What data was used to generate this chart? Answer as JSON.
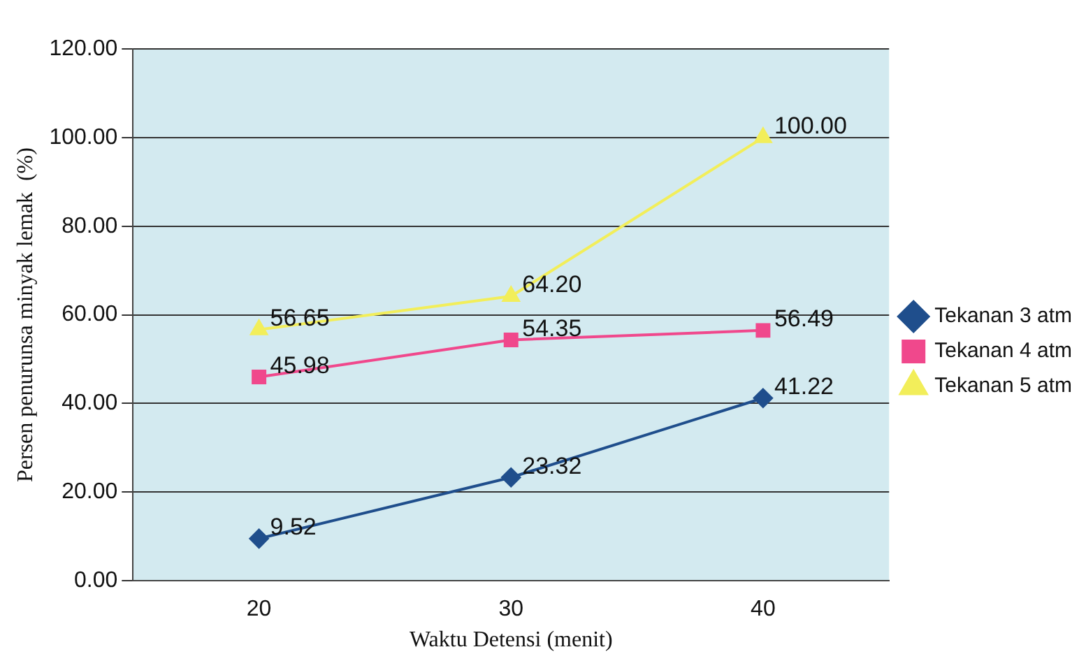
{
  "chart_data": {
    "type": "line",
    "xlabel": "Waktu Detensi (menit)",
    "ylabel": "Persen penurunsa minyak lemak  (%)",
    "categories": [
      "20",
      "30",
      "40"
    ],
    "series": [
      {
        "name": "Tekanan 3 atm",
        "color": "#1f4e8c",
        "marker": "diamond",
        "values": [
          9.52,
          23.32,
          41.22
        ],
        "value_labels": [
          "9.52",
          "23.32",
          "41.22"
        ]
      },
      {
        "name": "Tekanan 4 atm",
        "color": "#f0488c",
        "marker": "square",
        "values": [
          45.98,
          54.35,
          56.49
        ],
        "value_labels": [
          "45.98",
          "54.35",
          "56.49"
        ]
      },
      {
        "name": "Tekanan 5 atm",
        "color": "#f2ee5a",
        "marker": "triangle",
        "values": [
          56.65,
          64.2,
          100
        ],
        "value_labels": [
          "56.65",
          "64.20",
          "100.00"
        ]
      }
    ],
    "ylim": [
      0,
      120
    ],
    "yticks": [
      {
        "value": 0,
        "label": "0.00"
      },
      {
        "value": 20,
        "label": "20.00"
      },
      {
        "value": 40,
        "label": "40.00"
      },
      {
        "value": 60,
        "label": "60.00"
      },
      {
        "value": 80,
        "label": "80.00"
      },
      {
        "value": 100,
        "label": "100.00"
      },
      {
        "value": 120,
        "label": "120.00"
      }
    ],
    "grid": "y",
    "legend": "right"
  }
}
